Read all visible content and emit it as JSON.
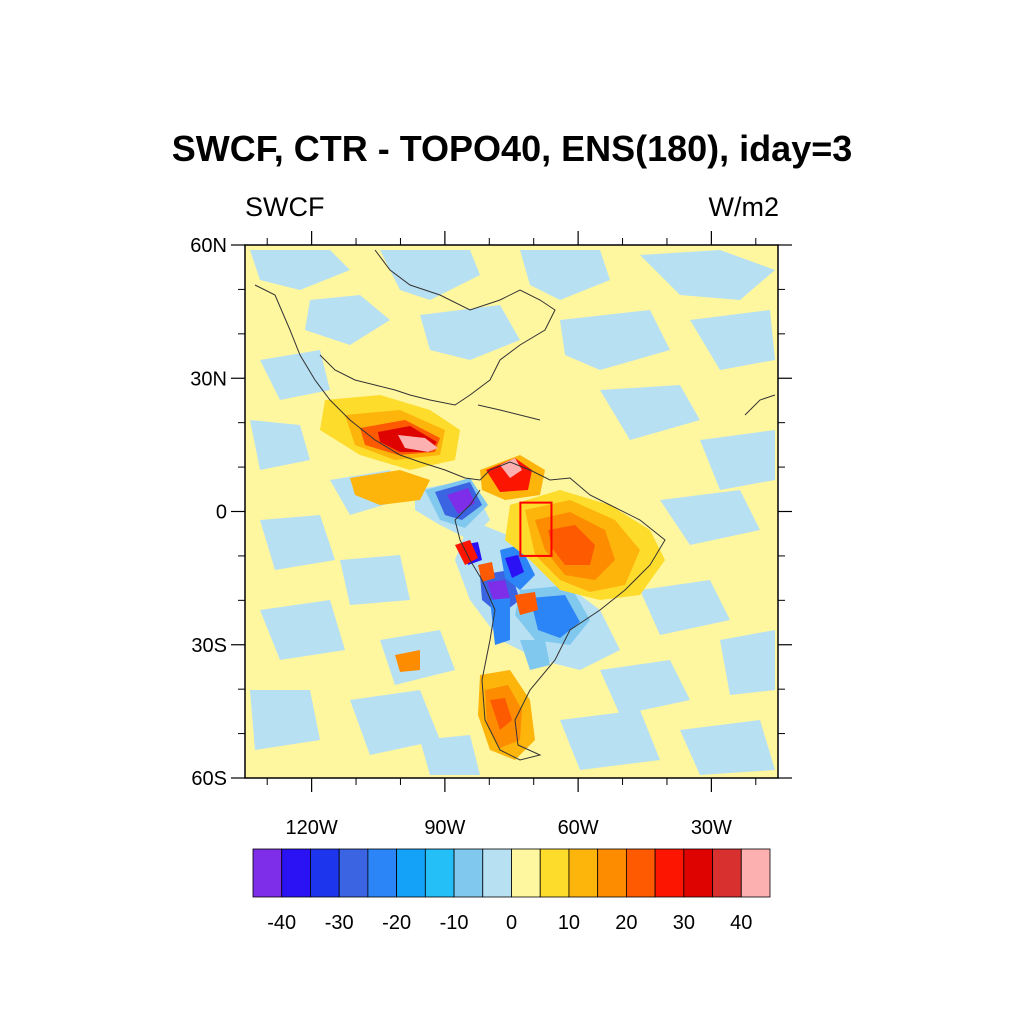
{
  "title": "SWCF, CTR - TOPO40, ENS(180), iday=3",
  "left_string": "SWCF",
  "right_string": "W/m2",
  "map": {
    "lon_range": [
      -135,
      -15
    ],
    "lat_range": [
      -60,
      60
    ],
    "lat_labels": [
      {
        "lat": 60,
        "text": "60N"
      },
      {
        "lat": 30,
        "text": "30N"
      },
      {
        "lat": 0,
        "text": "0"
      },
      {
        "lat": -30,
        "text": "30S"
      },
      {
        "lat": -60,
        "text": "60S"
      }
    ],
    "lon_labels": [
      {
        "lon": -120,
        "text": "120W"
      },
      {
        "lon": -90,
        "text": "90W"
      },
      {
        "lon": -60,
        "text": "60W"
      },
      {
        "lon": -30,
        "text": "30W"
      }
    ],
    "lon_minor": [
      -130,
      -110,
      -100,
      -80,
      -70,
      -50,
      -40,
      -20
    ],
    "lat_minor": [
      50,
      40,
      20,
      10,
      -10,
      -20,
      -40,
      -50
    ],
    "region_box": {
      "lon": [
        -73,
        -66
      ],
      "lat": [
        -10,
        2
      ],
      "color": "#ff0000"
    }
  },
  "colorbar": {
    "colors": [
      "#7e2de8",
      "#2a12f5",
      "#1e35ee",
      "#3a64e2",
      "#2c85f7",
      "#13a2f8",
      "#24bff7",
      "#81c8ef",
      "#b7e0f3",
      "#fff6a0",
      "#fedc2c",
      "#fdb40b",
      "#fd8c01",
      "#fd5a01",
      "#fc1501",
      "#de0201",
      "#d82f2f",
      "#fdb0b0"
    ],
    "labels": [
      "-40",
      "-30",
      "-20",
      "-10",
      "0",
      "10",
      "20",
      "30",
      "40"
    ]
  }
}
